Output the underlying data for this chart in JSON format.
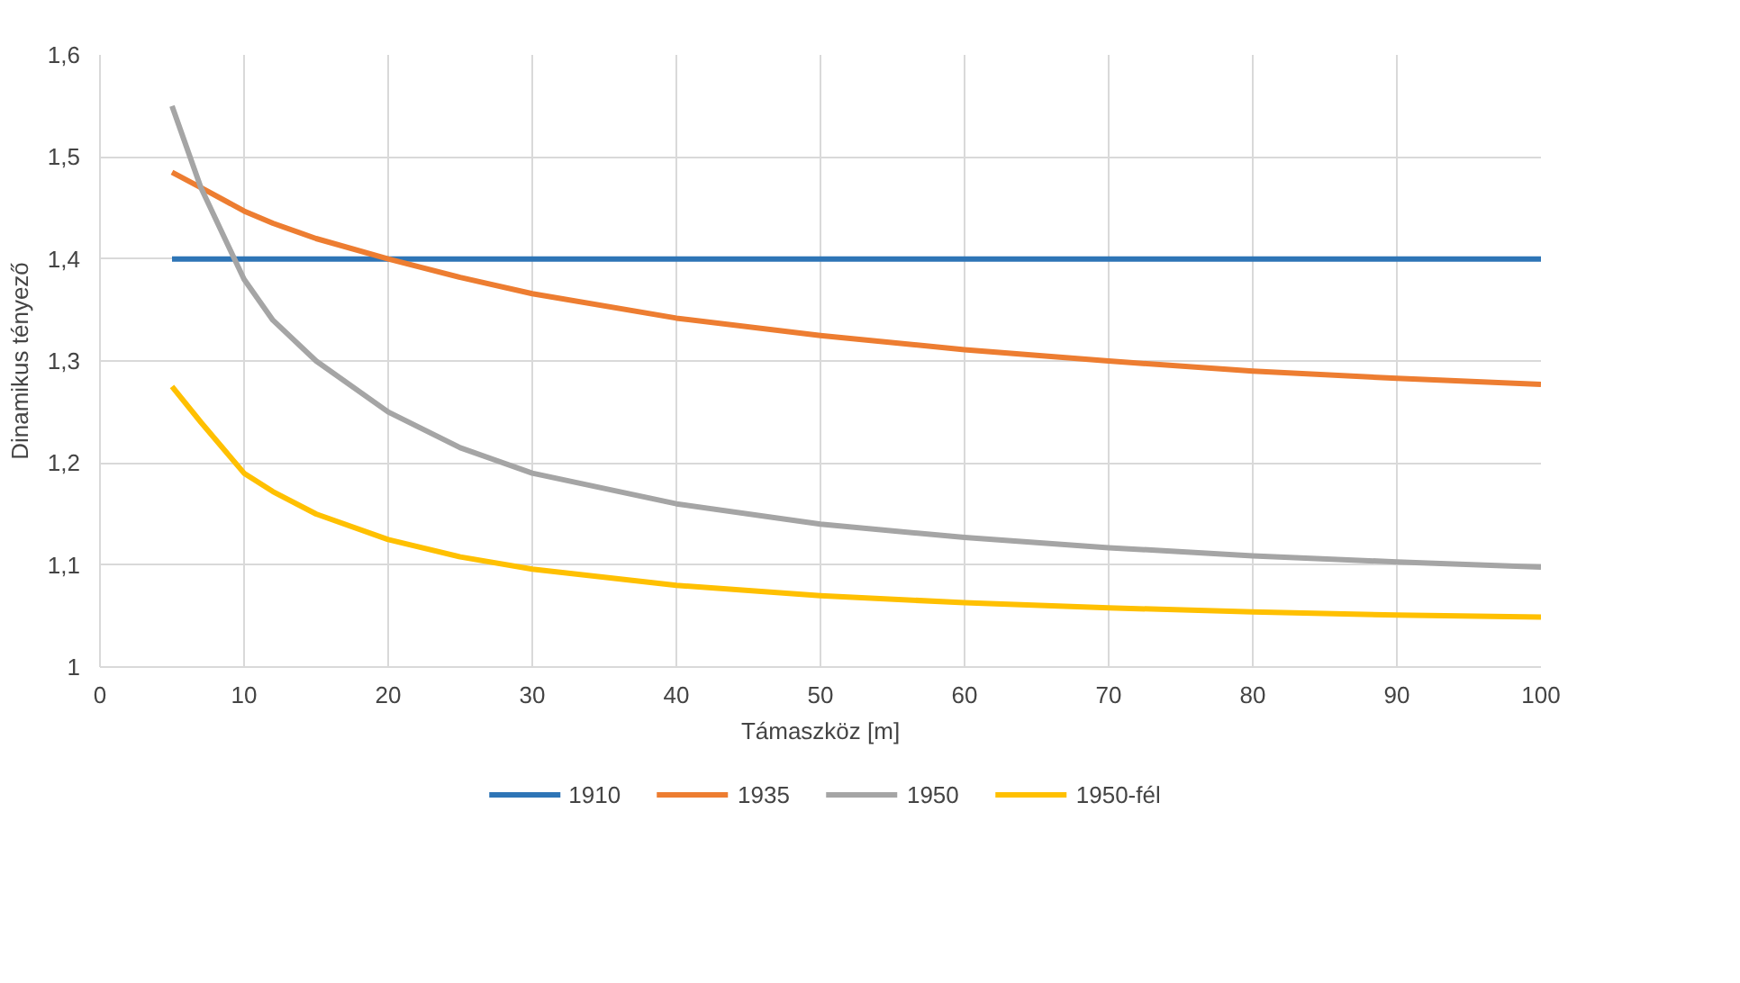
{
  "chart_data": {
    "type": "line",
    "xlabel": "Támaszköz [m]",
    "ylabel": "Dinamikus tényező",
    "xlim": [
      0,
      100
    ],
    "xticks": [
      0,
      10,
      20,
      30,
      40,
      50,
      60,
      70,
      80,
      90,
      100
    ],
    "ylim": [
      1,
      1.6
    ],
    "yticks": [
      {
        "value": 1,
        "label": "1"
      },
      {
        "value": 1.1,
        "label": "1,1"
      },
      {
        "value": 1.2,
        "label": "1,2"
      },
      {
        "value": 1.3,
        "label": "1,3"
      },
      {
        "value": 1.4,
        "label": "1,4"
      },
      {
        "value": 1.5,
        "label": "1,5"
      },
      {
        "value": 1.6,
        "label": "1,6"
      }
    ],
    "grid": true,
    "legend": "bottom",
    "marker": "none",
    "line_style": "solid",
    "x": [
      5,
      7,
      10,
      12,
      15,
      20,
      25,
      30,
      40,
      50,
      60,
      70,
      80,
      90,
      100
    ],
    "series": [
      {
        "name": "1910",
        "color": "#2e75b6",
        "values": [
          1.4,
          1.4,
          1.4,
          1.4,
          1.4,
          1.4,
          1.4,
          1.4,
          1.4,
          1.4,
          1.4,
          1.4,
          1.4,
          1.4,
          1.4
        ]
      },
      {
        "name": "1935",
        "color": "#ed7d31",
        "values": [
          1.485,
          1.47,
          1.447,
          1.435,
          1.42,
          1.4,
          1.382,
          1.366,
          1.342,
          1.325,
          1.311,
          1.3,
          1.29,
          1.283,
          1.277
        ]
      },
      {
        "name": "1950",
        "color": "#a5a5a5",
        "values": [
          1.55,
          1.47,
          1.38,
          1.34,
          1.3,
          1.25,
          1.215,
          1.19,
          1.16,
          1.14,
          1.127,
          1.117,
          1.109,
          1.103,
          1.098
        ]
      },
      {
        "name": "1950-fél",
        "color": "#ffc000",
        "values": [
          1.275,
          1.24,
          1.19,
          1.172,
          1.15,
          1.125,
          1.108,
          1.096,
          1.08,
          1.07,
          1.063,
          1.058,
          1.054,
          1.051,
          1.049
        ]
      }
    ]
  }
}
